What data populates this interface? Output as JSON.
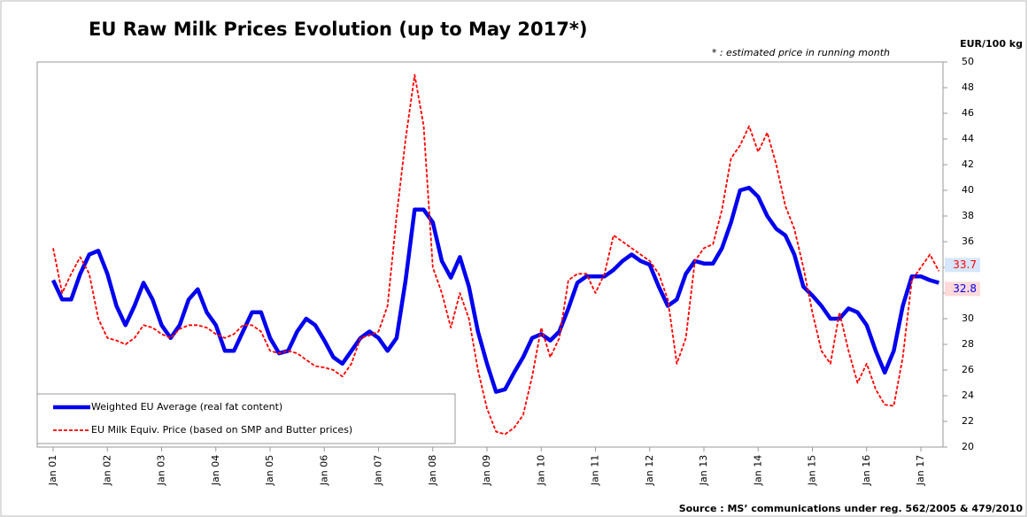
{
  "chart_data": {
    "type": "line",
    "title": "EU Raw Milk Prices Evolution (up to  May 2017*)",
    "subtitle": "* : estimated price in running month",
    "y_axis_label": "EUR/100 kg",
    "source": "Source : MS’ communications under reg. 562/2005 & 479/2010",
    "categories": [
      "Jan 01",
      null,
      null,
      null,
      null,
      null,
      "Jan 02",
      null,
      null,
      null,
      null,
      null,
      "Jan 03",
      null,
      null,
      null,
      null,
      null,
      "Jan 04",
      null,
      null,
      null,
      null,
      null,
      "Jan 05",
      null,
      null,
      null,
      null,
      null,
      "Jan 06",
      null,
      null,
      null,
      null,
      null,
      "Jan 07",
      null,
      null,
      null,
      null,
      null,
      "Jan 08",
      null,
      null,
      null,
      null,
      null,
      "Jan 09",
      null,
      null,
      null,
      null,
      null,
      "Jan 10",
      null,
      null,
      null,
      null,
      null,
      "Jan 11",
      null,
      null,
      null,
      null,
      null,
      "Jan 12",
      null,
      null,
      null,
      null,
      null,
      "Jan 13",
      null,
      null,
      null,
      null,
      null,
      "Jan 14",
      null,
      null,
      null,
      null,
      null,
      "Jan 15",
      null,
      null,
      null,
      null,
      null,
      "Jan 16",
      null,
      null,
      null,
      null,
      null,
      "Jan 17",
      null,
      null
    ],
    "series": [
      {
        "name": "Weighted EU Average (real fat content)",
        "color": "#0000ee",
        "style": "solid",
        "values": [
          33,
          31.5,
          31.5,
          33.5,
          35,
          35.3,
          33.5,
          31,
          29.5,
          31,
          32.8,
          31.5,
          29.5,
          28.5,
          29.5,
          31.5,
          32.3,
          30.5,
          29.5,
          27.5,
          27.5,
          29,
          30.5,
          30.5,
          28.5,
          27.3,
          27.5,
          29,
          30,
          29.5,
          28.3,
          27,
          26.5,
          27.5,
          28.5,
          29,
          28.5,
          27.5,
          28.5,
          33,
          38.5,
          38.5,
          37.5,
          34.5,
          33.2,
          34.8,
          32.5,
          29,
          26.5,
          24.3,
          24.5,
          25.8,
          27,
          28.5,
          28.8,
          28.3,
          29,
          30.8,
          32.8,
          33.3,
          33.3,
          33.3,
          33.8,
          34.5,
          35,
          34.5,
          34.2,
          32.5,
          31,
          31.5,
          33.5,
          34.5,
          34.3,
          34.3,
          35.5,
          37.5,
          40,
          40.2,
          39.5,
          38,
          37,
          36.5,
          35,
          32.5,
          31.8,
          31,
          30,
          30,
          30.8,
          30.5,
          29.5,
          27.5,
          25.8,
          27.5,
          31,
          33.3,
          33.3,
          33,
          32.8
        ]
      },
      {
        "name": "EU Milk Equiv. Price (based on SMP and Butter prices)",
        "color": "#ff0000",
        "style": "dashed",
        "values": [
          35.5,
          32,
          33.5,
          34.8,
          33.5,
          30,
          28.5,
          28.3,
          28,
          28.5,
          29.5,
          29.3,
          28.8,
          28.5,
          29.2,
          29.5,
          29.5,
          29.3,
          28.8,
          28.5,
          28.8,
          29.5,
          29.5,
          29,
          27.5,
          27.3,
          27.5,
          27.3,
          26.8,
          26.3,
          26.2,
          26,
          25.5,
          26.5,
          28.5,
          28.7,
          29,
          31,
          38,
          44,
          49,
          45,
          34,
          32,
          29.3,
          32,
          30,
          26,
          23,
          21.2,
          21,
          21.5,
          22.5,
          25.5,
          29.3,
          27,
          28.5,
          33,
          33.5,
          33.5,
          32,
          33.5,
          36.5,
          36,
          35.5,
          35,
          34.5,
          33.5,
          31.5,
          26.5,
          28.5,
          34.5,
          35.5,
          35.8,
          38.5,
          42.5,
          43.5,
          45,
          43,
          44.5,
          42,
          38.8,
          37,
          34,
          30.5,
          27.5,
          26.5,
          30.5,
          27.5,
          25,
          26.5,
          24.5,
          23.3,
          23.2,
          27,
          33,
          34,
          35,
          33.7
        ]
      }
    ],
    "ylim": [
      20,
      50
    ],
    "yticks": [
      20,
      22,
      24,
      26,
      28,
      30,
      32,
      34,
      36,
      38,
      40,
      42,
      44,
      46,
      48,
      50
    ],
    "grid": false,
    "legend": "lower left"
  }
}
